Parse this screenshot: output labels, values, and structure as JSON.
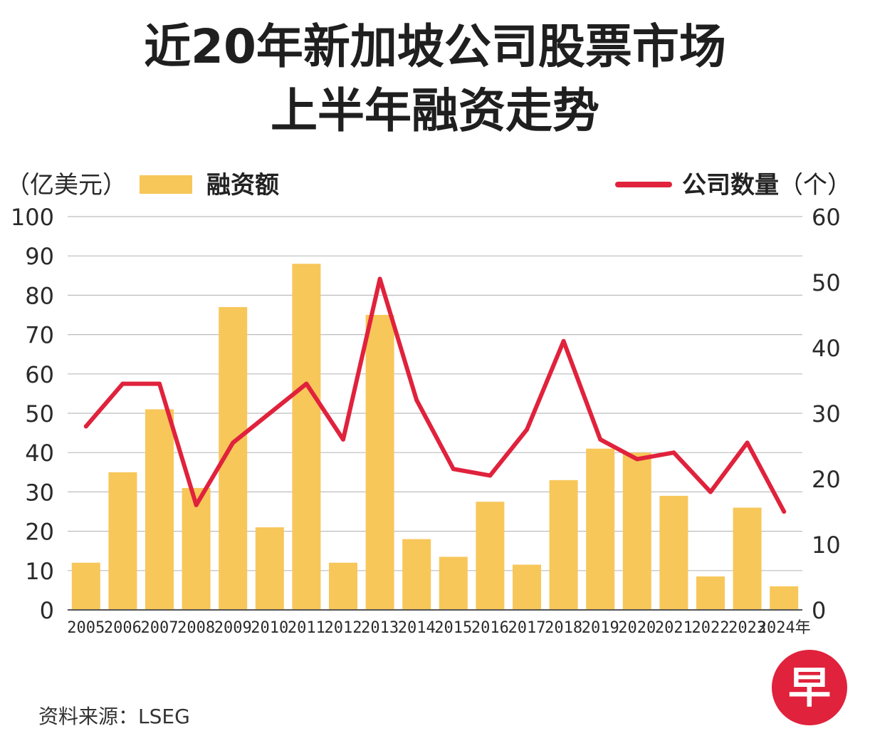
{
  "title_line1": "近20年新加坡公司股票市场",
  "title_line2": "上半年融资走势",
  "legend": {
    "left_unit": "（亿美元）",
    "bar_label": "融资额",
    "line_label_bold": "公司数量",
    "line_label_unit": "（个）"
  },
  "source": "资料来源：LSEG",
  "logo_text": "早",
  "colors": {
    "bar": "#F7C75A",
    "line": "#E0223C",
    "grid": "#bdbdbd",
    "logo": "#E0223C"
  },
  "chart_data": {
    "type": "bar",
    "categories": [
      "2005",
      "2006",
      "2007",
      "2008",
      "2009",
      "2010",
      "2011",
      "2012",
      "2013",
      "2014",
      "2015",
      "2016",
      "2017",
      "2018",
      "2019",
      "2020",
      "2021",
      "2022",
      "2023",
      "2024年"
    ],
    "series": [
      {
        "name": "融资额",
        "type": "bar",
        "axis": "left",
        "values": [
          12,
          35,
          51,
          31,
          77,
          21,
          88,
          12,
          75,
          18,
          13.5,
          27.5,
          11.5,
          33,
          41,
          40,
          29,
          8.5,
          26,
          6
        ]
      },
      {
        "name": "公司数量",
        "type": "line",
        "axis": "right",
        "values": [
          28,
          34.5,
          34.5,
          16,
          25.5,
          30,
          34.5,
          26,
          50.5,
          32,
          21.5,
          20.5,
          27.5,
          41,
          26,
          23,
          24,
          18,
          25.5,
          15
        ]
      }
    ],
    "y_left": {
      "label": "（亿美元）",
      "ylim": [
        0,
        100
      ],
      "ticks": [
        "0",
        "10",
        "20",
        "30",
        "40",
        "50",
        "60",
        "70",
        "80",
        "90",
        "100"
      ]
    },
    "y_right": {
      "label": "（个）",
      "ylim": [
        0,
        60
      ],
      "ticks": [
        "0",
        "10",
        "20",
        "30",
        "40",
        "50",
        "60"
      ]
    },
    "grid": true,
    "legend_position": "top"
  }
}
